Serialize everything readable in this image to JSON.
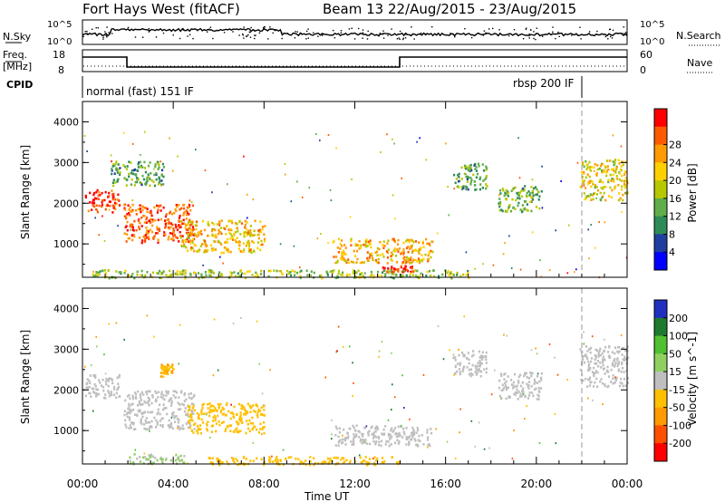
{
  "header": {
    "station": "Fort Hays West (fitACF)",
    "beam_and_dates": "Beam 13 22/Aug/2015 - 23/Aug/2015"
  },
  "nsky": {
    "label": "N.Sky",
    "tick_top": "10^5",
    "tick_bottom": "10^0",
    "right_label": "N.Search",
    "right_tick_top": "10^5",
    "right_tick_bottom": "10^0"
  },
  "freq": {
    "label_line1": "Freq.",
    "label_line2": "[MHz]",
    "tick_top": "18",
    "tick_bottom": "8",
    "right_label": "Nave",
    "right_tick_top": "60",
    "right_tick_bottom": "0"
  },
  "cpid": {
    "label": "CPID",
    "mode_left": "normal (fast) 151 IF",
    "mode_right": "rbsp 200 IF"
  },
  "colors": {
    "power_scale": [
      "#0000ff",
      "#1f3f9f",
      "#2e8b57",
      "#5fae4a",
      "#b8c800",
      "#ffd000",
      "#ff9a00",
      "#ff5a00",
      "#ff0000"
    ],
    "velocity_scale": [
      "#2030c0",
      "#1e7a2e",
      "#4fc030",
      "#8fd060",
      "#bfbfbf",
      "#ffc000",
      "#ff9a00",
      "#ff5000",
      "#ff0000"
    ],
    "ground_scatter": "#bfbfbf"
  },
  "chart_data": [
    {
      "type": "heatmap",
      "title": "",
      "ylabel": "Slant Range [km]",
      "xlabel": "",
      "ylim": [
        180,
        4500
      ],
      "xlim": [
        0,
        24
      ],
      "x_tick_labels": [
        "00:00",
        "04:00",
        "08:00",
        "12:00",
        "16:00",
        "20:00",
        "00:00"
      ],
      "y_tick_labels": [
        "1000",
        "2000",
        "3000",
        "4000"
      ],
      "colorbar": {
        "label": "Power [dB]",
        "tick_labels": [
          "4",
          "8",
          "12",
          "16",
          "20",
          "24",
          "28"
        ],
        "range": [
          0,
          30
        ],
        "placement": "right"
      },
      "echo_regions": [
        {
          "t0": 0.1,
          "t1": 1.6,
          "r0": 1800,
          "r1": 2350,
          "level": 27
        },
        {
          "t0": 1.8,
          "t1": 4.9,
          "r0": 1050,
          "r1": 2000,
          "level": 25
        },
        {
          "t0": 4.3,
          "t1": 8.0,
          "r0": 800,
          "r1": 1600,
          "level": 19
        },
        {
          "t0": 1.2,
          "t1": 3.6,
          "r0": 2450,
          "r1": 3050,
          "level": 11
        },
        {
          "t0": 11.0,
          "t1": 15.4,
          "r0": 550,
          "r1": 1150,
          "level": 20
        },
        {
          "t0": 13.2,
          "t1": 14.6,
          "r0": 330,
          "r1": 480,
          "level": 28
        },
        {
          "t0": 16.3,
          "t1": 17.8,
          "r0": 2350,
          "r1": 3000,
          "level": 11
        },
        {
          "t0": 18.3,
          "t1": 20.2,
          "r0": 1800,
          "r1": 2450,
          "level": 12
        },
        {
          "t0": 21.9,
          "t1": 24.0,
          "r0": 2100,
          "r1": 3100,
          "level": 17
        },
        {
          "t0": 0.4,
          "t1": 17.0,
          "r0": 180,
          "r1": 380,
          "level": 14
        }
      ]
    },
    {
      "type": "heatmap",
      "title": "",
      "ylabel": "Slant Range [km]",
      "xlabel": "Time UT",
      "ylim": [
        180,
        4500
      ],
      "xlim": [
        0,
        24
      ],
      "x_tick_labels": [
        "00:00",
        "04:00",
        "08:00",
        "12:00",
        "16:00",
        "20:00",
        "00:00"
      ],
      "y_tick_labels": [
        "1000",
        "2000",
        "3000",
        "4000"
      ],
      "colorbar": {
        "label": "Velocity [m s^-1]",
        "tick_labels": [
          "200",
          "100",
          "50",
          "15",
          "-15",
          "-50",
          "-100",
          "-200"
        ],
        "range": [
          -250,
          250
        ],
        "placement": "right"
      },
      "echo_regions": [
        {
          "t0": 0.1,
          "t1": 1.6,
          "r0": 1800,
          "r1": 2400,
          "level": 0
        },
        {
          "t0": 1.8,
          "t1": 4.9,
          "r0": 1050,
          "r1": 2000,
          "level": 0
        },
        {
          "t0": 4.6,
          "t1": 8.0,
          "r0": 950,
          "r1": 1700,
          "level": -60
        },
        {
          "t0": 3.4,
          "t1": 4.0,
          "r0": 2350,
          "r1": 2650,
          "level": -80
        },
        {
          "t0": 11.0,
          "t1": 15.4,
          "r0": 650,
          "r1": 1150,
          "level": 0
        },
        {
          "t0": 16.3,
          "t1": 17.8,
          "r0": 2350,
          "r1": 3000,
          "level": 0
        },
        {
          "t0": 18.3,
          "t1": 20.2,
          "r0": 1800,
          "r1": 2450,
          "level": 0
        },
        {
          "t0": 21.9,
          "t1": 24.0,
          "r0": 2100,
          "r1": 3100,
          "level": 0
        },
        {
          "t0": 5.5,
          "t1": 14.0,
          "r0": 180,
          "r1": 380,
          "level": -40
        },
        {
          "t0": 2.0,
          "t1": 4.5,
          "r0": 200,
          "r1": 450,
          "level": 30
        }
      ]
    }
  ]
}
